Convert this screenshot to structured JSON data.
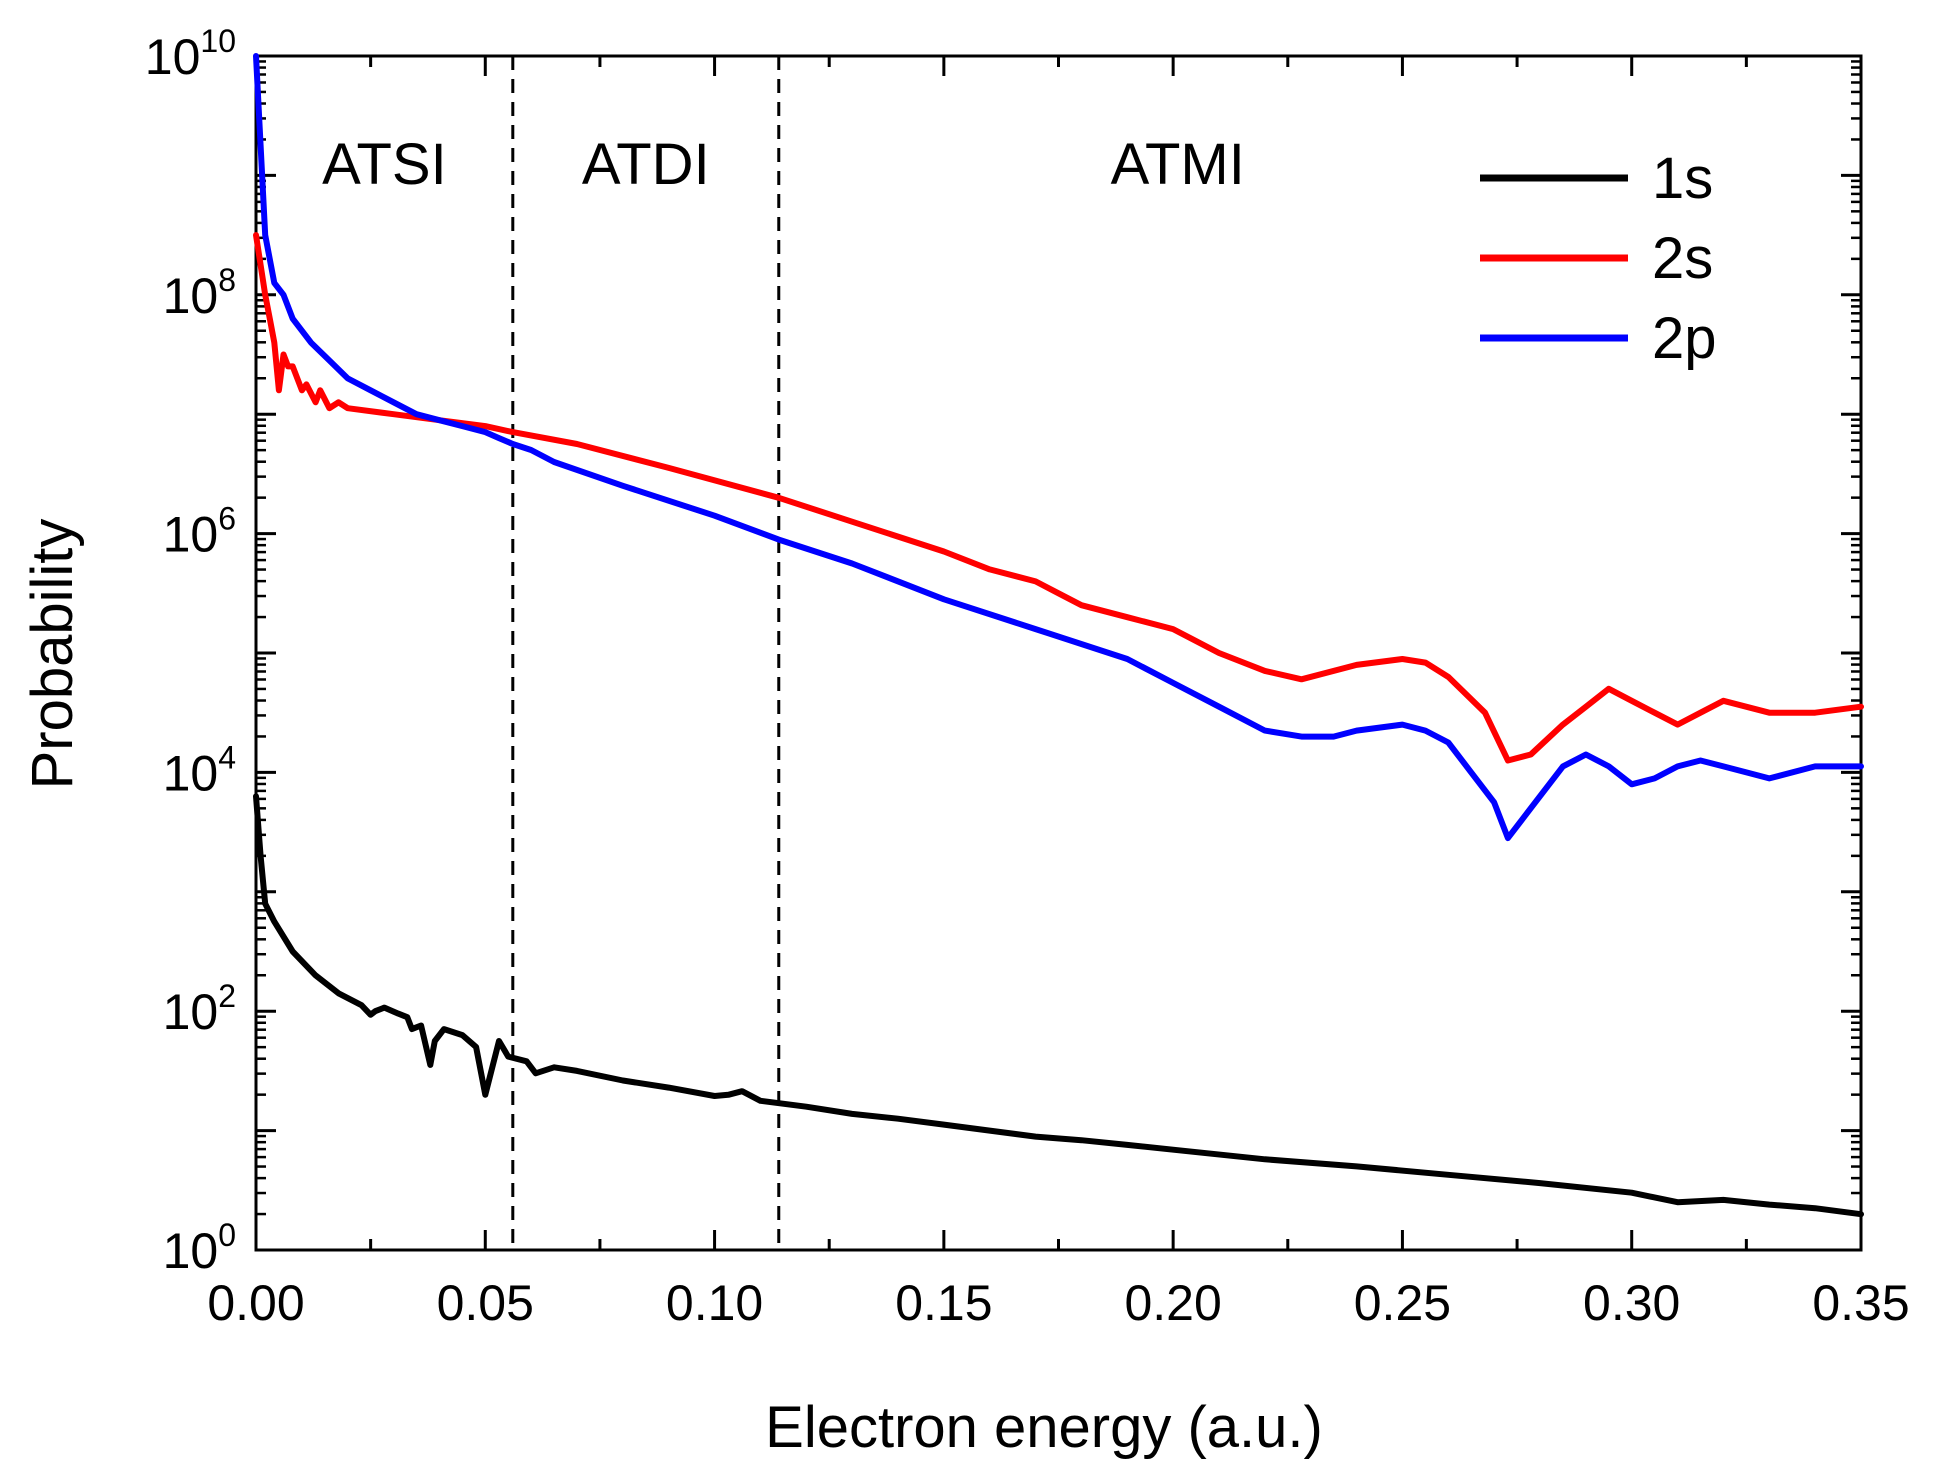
{
  "chart_data": {
    "type": "line",
    "title": "",
    "xlabel": "Electron energy (a.u.)",
    "ylabel": "Probability",
    "xlim": [
      0,
      0.35
    ],
    "ylim_log10": [
      0,
      10
    ],
    "yscale": "log",
    "x_ticks": [
      0,
      0.05,
      0.1,
      0.15,
      0.2,
      0.25,
      0.3,
      0.35
    ],
    "x_tick_labels": [
      "0.00",
      "0.05",
      "0.10",
      "0.15",
      "0.20",
      "0.25",
      "0.30",
      "0.35"
    ],
    "y_ticks_log10": [
      0,
      2,
      4,
      6,
      8,
      10
    ],
    "y_tick_labels": [
      {
        "base": "10",
        "exp": "0"
      },
      {
        "base": "10",
        "exp": "2"
      },
      {
        "base": "10",
        "exp": "4"
      },
      {
        "base": "10",
        "exp": "6"
      },
      {
        "base": "10",
        "exp": "8"
      },
      {
        "base": "10",
        "exp": "10"
      }
    ],
    "legend_position": "top-right",
    "regions": [
      {
        "label": "ATSI",
        "x_start": 0,
        "x_end": 0.056
      },
      {
        "label": "ATDI",
        "x_start": 0.056,
        "x_end": 0.114
      },
      {
        "label": "ATMI",
        "x_start": 0.114,
        "x_end": 0.35
      }
    ],
    "divider_x": [
      0.056,
      0.114
    ],
    "series": [
      {
        "name": "1s",
        "color": "#000000",
        "x": [
          0.0,
          0.001,
          0.002,
          0.004,
          0.008,
          0.013,
          0.018,
          0.023,
          0.025,
          0.026,
          0.028,
          0.031,
          0.033,
          0.034,
          0.036,
          0.038,
          0.039,
          0.041,
          0.045,
          0.048,
          0.05,
          0.053,
          0.055,
          0.059,
          0.061,
          0.065,
          0.07,
          0.08,
          0.09,
          0.1,
          0.103,
          0.106,
          0.11,
          0.12,
          0.13,
          0.14,
          0.15,
          0.16,
          0.17,
          0.18,
          0.19,
          0.2,
          0.22,
          0.24,
          0.26,
          0.28,
          0.3,
          0.31,
          0.32,
          0.33,
          0.34,
          0.35
        ],
        "log10y": [
          3.8,
          3.3,
          2.9,
          2.75,
          2.5,
          2.3,
          2.15,
          2.05,
          1.97,
          2.0,
          2.03,
          1.98,
          1.95,
          1.85,
          1.88,
          1.55,
          1.75,
          1.85,
          1.8,
          1.7,
          1.3,
          1.75,
          1.62,
          1.58,
          1.48,
          1.53,
          1.5,
          1.42,
          1.36,
          1.29,
          1.3,
          1.33,
          1.25,
          1.2,
          1.14,
          1.1,
          1.05,
          1.0,
          0.95,
          0.92,
          0.88,
          0.84,
          0.76,
          0.7,
          0.63,
          0.56,
          0.48,
          0.4,
          0.42,
          0.38,
          0.35,
          0.3
        ]
      },
      {
        "name": "2s",
        "color": "#ff0000",
        "x": [
          0.0,
          0.002,
          0.003,
          0.004,
          0.005,
          0.006,
          0.007,
          0.008,
          0.01,
          0.011,
          0.013,
          0.014,
          0.016,
          0.018,
          0.02,
          0.03,
          0.04,
          0.05,
          0.056,
          0.07,
          0.09,
          0.114,
          0.13,
          0.15,
          0.16,
          0.17,
          0.175,
          0.18,
          0.19,
          0.2,
          0.21,
          0.22,
          0.228,
          0.24,
          0.25,
          0.255,
          0.26,
          0.268,
          0.273,
          0.278,
          0.285,
          0.29,
          0.295,
          0.3,
          0.305,
          0.31,
          0.315,
          0.32,
          0.33,
          0.34,
          0.35
        ],
        "log10y": [
          8.5,
          8.0,
          7.8,
          7.6,
          7.2,
          7.5,
          7.4,
          7.4,
          7.2,
          7.25,
          7.1,
          7.2,
          7.05,
          7.1,
          7.05,
          7.0,
          6.95,
          6.9,
          6.85,
          6.75,
          6.55,
          6.3,
          6.1,
          5.85,
          5.7,
          5.6,
          5.5,
          5.4,
          5.3,
          5.2,
          5.0,
          4.85,
          4.78,
          4.9,
          4.95,
          4.92,
          4.8,
          4.5,
          4.1,
          4.15,
          4.4,
          4.55,
          4.7,
          4.6,
          4.5,
          4.4,
          4.5,
          4.6,
          4.5,
          4.5,
          4.55
        ]
      },
      {
        "name": "2p",
        "color": "#0000ff",
        "x": [
          0.0,
          0.002,
          0.004,
          0.006,
          0.008,
          0.012,
          0.016,
          0.02,
          0.025,
          0.03,
          0.035,
          0.04,
          0.045,
          0.05,
          0.053,
          0.056,
          0.06,
          0.065,
          0.08,
          0.1,
          0.114,
          0.13,
          0.15,
          0.17,
          0.19,
          0.2,
          0.21,
          0.22,
          0.228,
          0.235,
          0.24,
          0.25,
          0.255,
          0.26,
          0.265,
          0.27,
          0.273,
          0.278,
          0.285,
          0.29,
          0.295,
          0.3,
          0.305,
          0.31,
          0.315,
          0.32,
          0.325,
          0.33,
          0.34,
          0.345,
          0.35
        ],
        "log10y": [
          10.0,
          8.5,
          8.1,
          8.0,
          7.8,
          7.6,
          7.45,
          7.3,
          7.2,
          7.1,
          7.0,
          6.95,
          6.9,
          6.85,
          6.8,
          6.75,
          6.7,
          6.6,
          6.4,
          6.15,
          5.95,
          5.75,
          5.45,
          5.2,
          4.95,
          4.75,
          4.55,
          4.35,
          4.3,
          4.3,
          4.35,
          4.4,
          4.35,
          4.25,
          4.0,
          3.75,
          3.45,
          3.7,
          4.05,
          4.15,
          4.05,
          3.9,
          3.95,
          4.05,
          4.1,
          4.05,
          4.0,
          3.95,
          4.05,
          4.05,
          4.05
        ]
      }
    ]
  }
}
